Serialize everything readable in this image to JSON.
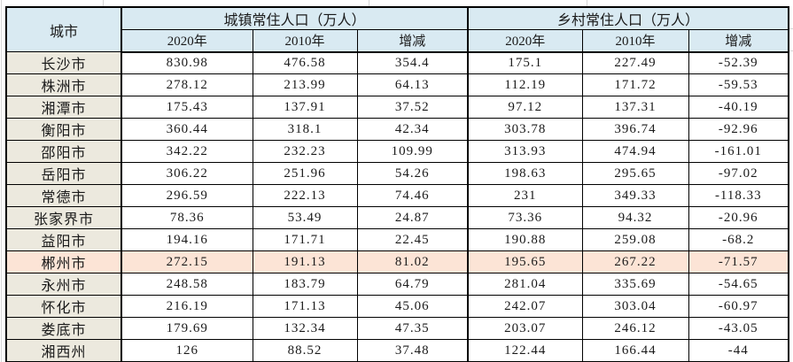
{
  "table": {
    "header": {
      "city": "城市",
      "urban_group": "城镇常住人口（万人）",
      "rural_group": "乡村常住人口（万人）",
      "sub": [
        "2020年",
        "2010年",
        "增减",
        "2020年",
        "2010年",
        "增减"
      ]
    },
    "rows": [
      {
        "city": "长沙市",
        "cells": [
          "830.98",
          "476.58",
          "354.4",
          "175.1",
          "227.49",
          "-52.39"
        ],
        "highlight": false
      },
      {
        "city": "株洲市",
        "cells": [
          "278.12",
          "213.99",
          "64.13",
          "112.19",
          "171.72",
          "-59.53"
        ],
        "highlight": false
      },
      {
        "city": "湘潭市",
        "cells": [
          "175.43",
          "137.91",
          "37.52",
          "97.12",
          "137.31",
          "-40.19"
        ],
        "highlight": false
      },
      {
        "city": "衡阳市",
        "cells": [
          "360.44",
          "318.1",
          "42.34",
          "303.78",
          "396.74",
          "-92.96"
        ],
        "highlight": false
      },
      {
        "city": "邵阳市",
        "cells": [
          "342.22",
          "232.23",
          "109.99",
          "313.93",
          "474.94",
          "-161.01"
        ],
        "highlight": false
      },
      {
        "city": "岳阳市",
        "cells": [
          "306.22",
          "251.96",
          "54.26",
          "198.63",
          "295.65",
          "-97.02"
        ],
        "highlight": false
      },
      {
        "city": "常德市",
        "cells": [
          "296.59",
          "222.13",
          "74.46",
          "231",
          "349.33",
          "-118.33"
        ],
        "highlight": false
      },
      {
        "city": "张家界市",
        "cells": [
          "78.36",
          "53.49",
          "24.87",
          "73.36",
          "94.32",
          "-20.96"
        ],
        "highlight": false
      },
      {
        "city": "益阳市",
        "cells": [
          "194.16",
          "171.71",
          "22.45",
          "190.88",
          "259.08",
          "-68.2"
        ],
        "highlight": false
      },
      {
        "city": "郴州市",
        "cells": [
          "272.15",
          "191.13",
          "81.02",
          "195.65",
          "267.22",
          "-71.57"
        ],
        "highlight": true
      },
      {
        "city": "永州市",
        "cells": [
          "248.58",
          "183.79",
          "64.79",
          "281.04",
          "335.69",
          "-54.65"
        ],
        "highlight": false
      },
      {
        "city": "怀化市",
        "cells": [
          "216.19",
          "171.13",
          "45.06",
          "242.07",
          "303.04",
          "-60.97"
        ],
        "highlight": false
      },
      {
        "city": "娄底市",
        "cells": [
          "179.69",
          "132.34",
          "47.35",
          "203.07",
          "246.12",
          "-43.05"
        ],
        "highlight": false
      },
      {
        "city": "湘西州",
        "cells": [
          "126",
          "88.52",
          "37.48",
          "122.44",
          "166.44",
          "-44"
        ],
        "highlight": false
      }
    ]
  },
  "colors": {
    "header_bg": "#d9eaf2",
    "city_col_bg": "#ece9de",
    "highlight_row_bg": "#fce4d6",
    "border": "#000000"
  }
}
